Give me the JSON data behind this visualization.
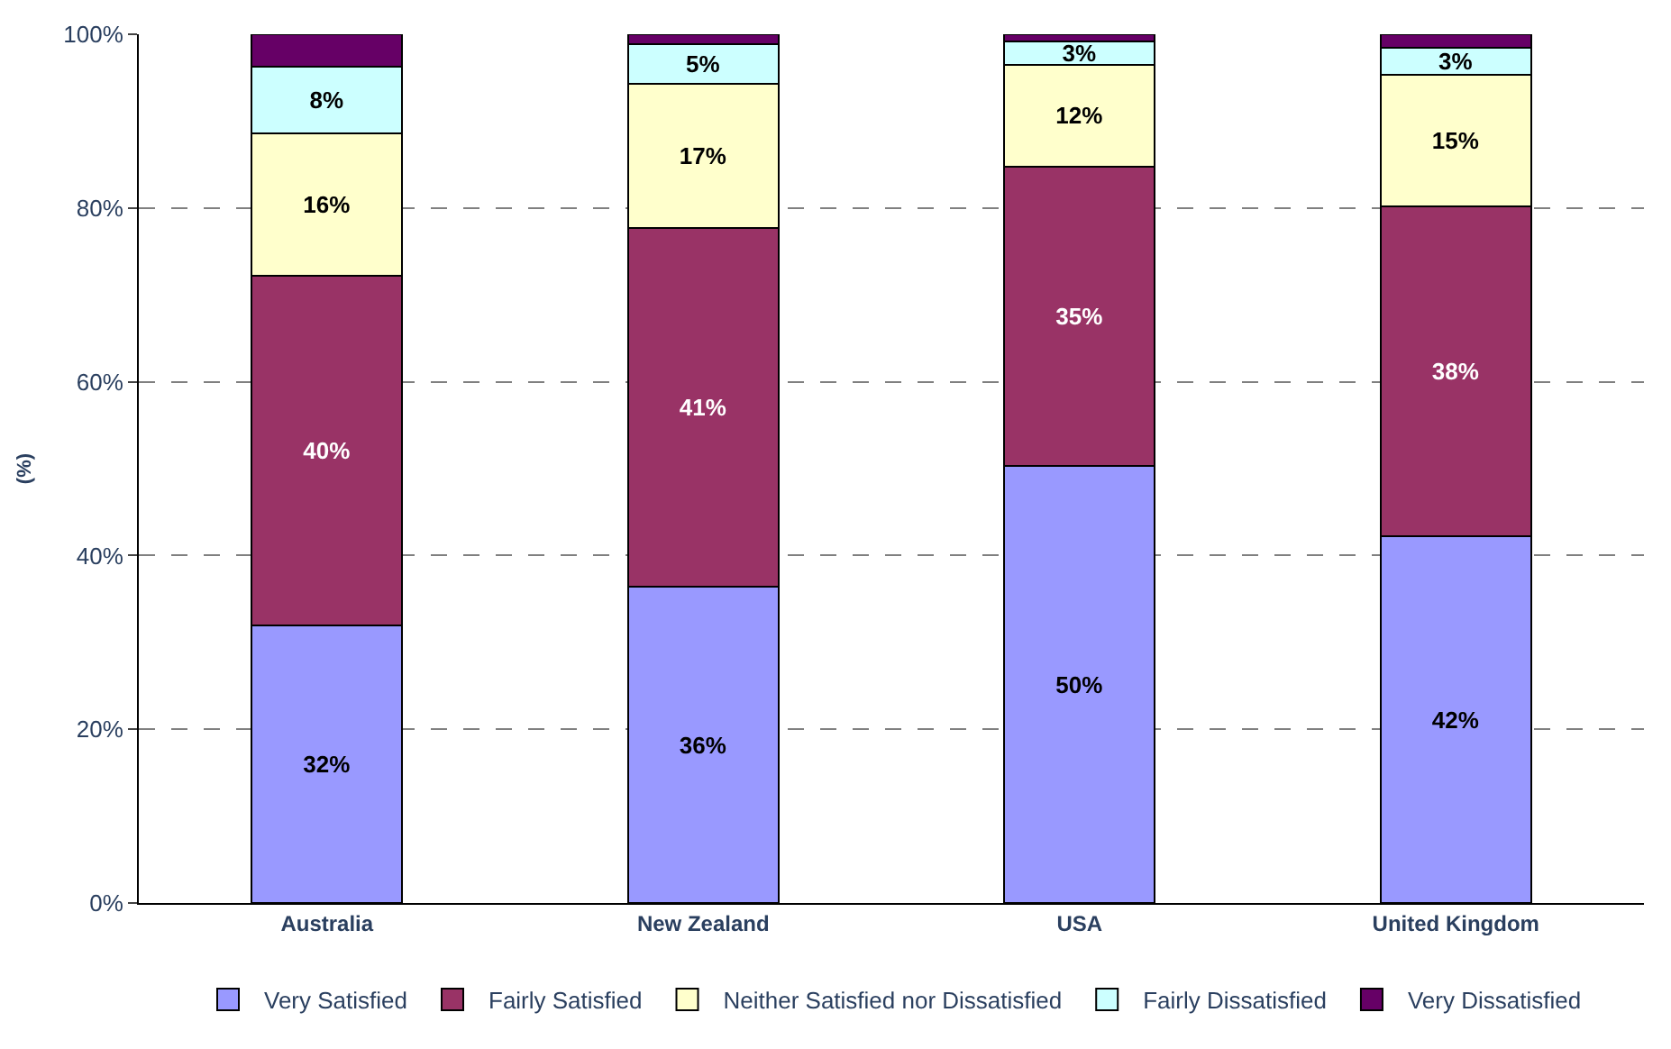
{
  "chart_data": {
    "type": "bar",
    "stacked": true,
    "ylabel": "(%)",
    "categories": [
      "Australia",
      "New Zealand",
      "USA",
      "United Kingdom"
    ],
    "series": [
      {
        "name": "Very Satisfied",
        "color": "#9999ff",
        "values": [
          32.0,
          36.4,
          50.3,
          42.2
        ],
        "value_labels": [
          "32%",
          "36%",
          "50%",
          "42%"
        ]
      },
      {
        "name": "Fairly Satisfied",
        "color": "#993366",
        "values": [
          40.2,
          41.3,
          34.5,
          38.0
        ],
        "value_labels": [
          "40%",
          "41%",
          "35%",
          "38%"
        ]
      },
      {
        "name": "Neither Satisfied nor Dissatisfied",
        "color": "#ffffcc",
        "values": [
          16.4,
          16.6,
          11.7,
          15.1
        ],
        "value_labels": [
          "16%",
          "17%",
          "12%",
          "15%"
        ]
      },
      {
        "name": "Fairly Dissatisfied",
        "color": "#ccffff",
        "values": [
          7.7,
          4.6,
          2.7,
          3.1
        ],
        "value_labels": [
          "8%",
          "5%",
          "3%",
          "3%"
        ]
      },
      {
        "name": "Very Dissatisfied",
        "color": "#660066",
        "values": [
          3.7,
          1.1,
          0.8,
          1.6
        ],
        "value_labels": [
          null,
          null,
          null,
          null
        ]
      }
    ],
    "ylim": [
      0,
      100
    ],
    "yticks": [
      {
        "value": 0,
        "label": "0%"
      },
      {
        "value": 20,
        "label": "20%"
      },
      {
        "value": 40,
        "label": "40%"
      },
      {
        "value": 60,
        "label": "60%"
      },
      {
        "value": 80,
        "label": "80%"
      },
      {
        "value": 100,
        "label": "100%"
      }
    ],
    "grid": "y",
    "legend": "bottom"
  }
}
